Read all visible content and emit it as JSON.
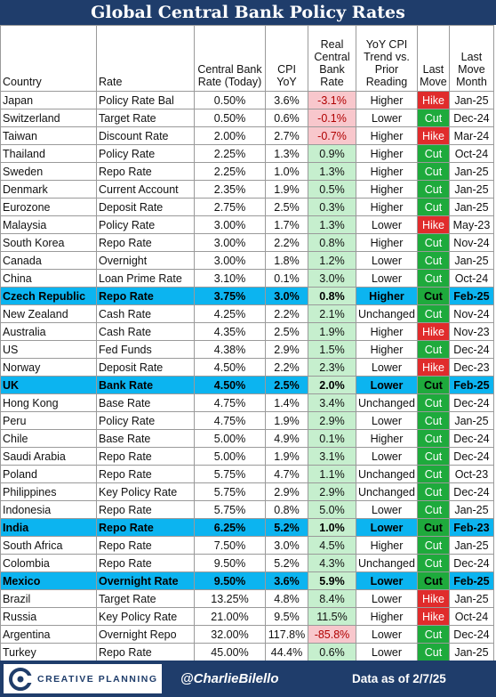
{
  "title": "Global Central Bank Policy Rates",
  "headers": {
    "country": "Country",
    "rate": "Rate",
    "cbrate": "Central Bank Rate (Today)",
    "cpi": "CPI YoY",
    "real": "Real Central Bank Rate",
    "trend": "YoY CPI Trend vs. Prior Reading",
    "last_move": "Last Move",
    "last_move_month": "Last Move Month"
  },
  "rows": [
    {
      "country": "Japan",
      "rate": "Policy Rate Bal",
      "cb": "0.50%",
      "cpi": "3.6%",
      "real": "-3.1%",
      "trend": "Higher",
      "move": "Hike",
      "month": "Jan-25"
    },
    {
      "country": "Switzerland",
      "rate": "Target Rate",
      "cb": "0.50%",
      "cpi": "0.6%",
      "real": "-0.1%",
      "trend": "Lower",
      "move": "Cut",
      "month": "Dec-24"
    },
    {
      "country": "Taiwan",
      "rate": "Discount Rate",
      "cb": "2.00%",
      "cpi": "2.7%",
      "real": "-0.7%",
      "trend": "Higher",
      "move": "Hike",
      "month": "Mar-24"
    },
    {
      "country": "Thailand",
      "rate": "Policy Rate",
      "cb": "2.25%",
      "cpi": "1.3%",
      "real": "0.9%",
      "trend": "Higher",
      "move": "Cut",
      "month": "Oct-24"
    },
    {
      "country": "Sweden",
      "rate": "Repo Rate",
      "cb": "2.25%",
      "cpi": "1.0%",
      "real": "1.3%",
      "trend": "Higher",
      "move": "Cut",
      "month": "Jan-25"
    },
    {
      "country": "Denmark",
      "rate": "Current Account",
      "cb": "2.35%",
      "cpi": "1.9%",
      "real": "0.5%",
      "trend": "Higher",
      "move": "Cut",
      "month": "Jan-25"
    },
    {
      "country": "Eurozone",
      "rate": "Deposit Rate",
      "cb": "2.75%",
      "cpi": "2.5%",
      "real": "0.3%",
      "trend": "Higher",
      "move": "Cut",
      "month": "Jan-25"
    },
    {
      "country": "Malaysia",
      "rate": "Policy Rate",
      "cb": "3.00%",
      "cpi": "1.7%",
      "real": "1.3%",
      "trend": "Lower",
      "move": "Hike",
      "month": "May-23"
    },
    {
      "country": "South Korea",
      "rate": "Repo Rate",
      "cb": "3.00%",
      "cpi": "2.2%",
      "real": "0.8%",
      "trend": "Higher",
      "move": "Cut",
      "month": "Nov-24"
    },
    {
      "country": "Canada",
      "rate": "Overnight",
      "cb": "3.00%",
      "cpi": "1.8%",
      "real": "1.2%",
      "trend": "Lower",
      "move": "Cut",
      "month": "Jan-25"
    },
    {
      "country": "China",
      "rate": "Loan Prime Rate",
      "cb": "3.10%",
      "cpi": "0.1%",
      "real": "3.0%",
      "trend": "Lower",
      "move": "Cut",
      "month": "Oct-24"
    },
    {
      "country": "Czech Republic",
      "rate": "Repo Rate",
      "cb": "3.75%",
      "cpi": "3.0%",
      "real": "0.8%",
      "trend": "Higher",
      "move": "Cut",
      "month": "Feb-25",
      "hl": true
    },
    {
      "country": "New Zealand",
      "rate": "Cash Rate",
      "cb": "4.25%",
      "cpi": "2.2%",
      "real": "2.1%",
      "trend": "Unchanged",
      "move": "Cut",
      "month": "Nov-24"
    },
    {
      "country": "Australia",
      "rate": "Cash Rate",
      "cb": "4.35%",
      "cpi": "2.5%",
      "real": "1.9%",
      "trend": "Higher",
      "move": "Hike",
      "month": "Nov-23"
    },
    {
      "country": "US",
      "rate": "Fed Funds",
      "cb": "4.38%",
      "cpi": "2.9%",
      "real": "1.5%",
      "trend": "Higher",
      "move": "Cut",
      "month": "Dec-24"
    },
    {
      "country": "Norway",
      "rate": "Deposit Rate",
      "cb": "4.50%",
      "cpi": "2.2%",
      "real": "2.3%",
      "trend": "Lower",
      "move": "Hike",
      "month": "Dec-23"
    },
    {
      "country": "UK",
      "rate": "Bank Rate",
      "cb": "4.50%",
      "cpi": "2.5%",
      "real": "2.0%",
      "trend": "Lower",
      "move": "Cut",
      "month": "Feb-25",
      "hl": true
    },
    {
      "country": "Hong Kong",
      "rate": "Base Rate",
      "cb": "4.75%",
      "cpi": "1.4%",
      "real": "3.4%",
      "trend": "Unchanged",
      "move": "Cut",
      "month": "Dec-24"
    },
    {
      "country": "Peru",
      "rate": "Policy Rate",
      "cb": "4.75%",
      "cpi": "1.9%",
      "real": "2.9%",
      "trend": "Lower",
      "move": "Cut",
      "month": "Jan-25"
    },
    {
      "country": "Chile",
      "rate": "Base Rate",
      "cb": "5.00%",
      "cpi": "4.9%",
      "real": "0.1%",
      "trend": "Higher",
      "move": "Cut",
      "month": "Dec-24"
    },
    {
      "country": "Saudi Arabia",
      "rate": "Repo Rate",
      "cb": "5.00%",
      "cpi": "1.9%",
      "real": "3.1%",
      "trend": "Lower",
      "move": "Cut",
      "month": "Dec-24"
    },
    {
      "country": "Poland",
      "rate": "Repo Rate",
      "cb": "5.75%",
      "cpi": "4.7%",
      "real": "1.1%",
      "trend": "Unchanged",
      "move": "Cut",
      "month": "Oct-23"
    },
    {
      "country": "Philippines",
      "rate": "Key Policy Rate",
      "cb": "5.75%",
      "cpi": "2.9%",
      "real": "2.9%",
      "trend": "Unchanged",
      "move": "Cut",
      "month": "Dec-24"
    },
    {
      "country": "Indonesia",
      "rate": "Repo Rate",
      "cb": "5.75%",
      "cpi": "0.8%",
      "real": "5.0%",
      "trend": "Lower",
      "move": "Cut",
      "month": "Jan-25"
    },
    {
      "country": "India",
      "rate": "Repo Rate",
      "cb": "6.25%",
      "cpi": "5.2%",
      "real": "1.0%",
      "trend": "Lower",
      "move": "Cut",
      "month": "Feb-23",
      "hl": true
    },
    {
      "country": "South Africa",
      "rate": "Repo Rate",
      "cb": "7.50%",
      "cpi": "3.0%",
      "real": "4.5%",
      "trend": "Higher",
      "move": "Cut",
      "month": "Jan-25"
    },
    {
      "country": "Colombia",
      "rate": "Repo Rate",
      "cb": "9.50%",
      "cpi": "5.2%",
      "real": "4.3%",
      "trend": "Unchanged",
      "move": "Cut",
      "month": "Dec-24"
    },
    {
      "country": "Mexico",
      "rate": "Overnight Rate",
      "cb": "9.50%",
      "cpi": "3.6%",
      "real": "5.9%",
      "trend": "Lower",
      "move": "Cut",
      "month": "Feb-25",
      "hl": true
    },
    {
      "country": "Brazil",
      "rate": "Target Rate",
      "cb": "13.25%",
      "cpi": "4.8%",
      "real": "8.4%",
      "trend": "Lower",
      "move": "Hike",
      "month": "Jan-25"
    },
    {
      "country": "Russia",
      "rate": "Key Policy Rate",
      "cb": "21.00%",
      "cpi": "9.5%",
      "real": "11.5%",
      "trend": "Higher",
      "move": "Hike",
      "month": "Oct-24"
    },
    {
      "country": "Argentina",
      "rate": "Overnight Repo",
      "cb": "32.00%",
      "cpi": "117.8%",
      "real": "-85.8%",
      "trend": "Lower",
      "move": "Cut",
      "month": "Dec-24"
    },
    {
      "country": "Turkey",
      "rate": "Repo Rate",
      "cb": "45.00%",
      "cpi": "44.4%",
      "real": "0.6%",
      "trend": "Lower",
      "move": "Cut",
      "month": "Jan-25"
    }
  ],
  "footer": {
    "logo_text": "CREATIVE PLANNING",
    "handle": "@CharlieBilello",
    "as_of": "Data as of 2/7/25"
  },
  "colors": {
    "header_bg": "#1f3d6b",
    "highlight_row": "#0cb4f0",
    "positive_real": "#c6efce",
    "negative_real": "#f8c7cc",
    "hike": "#e02c2c",
    "cut": "#1eaa3c"
  }
}
